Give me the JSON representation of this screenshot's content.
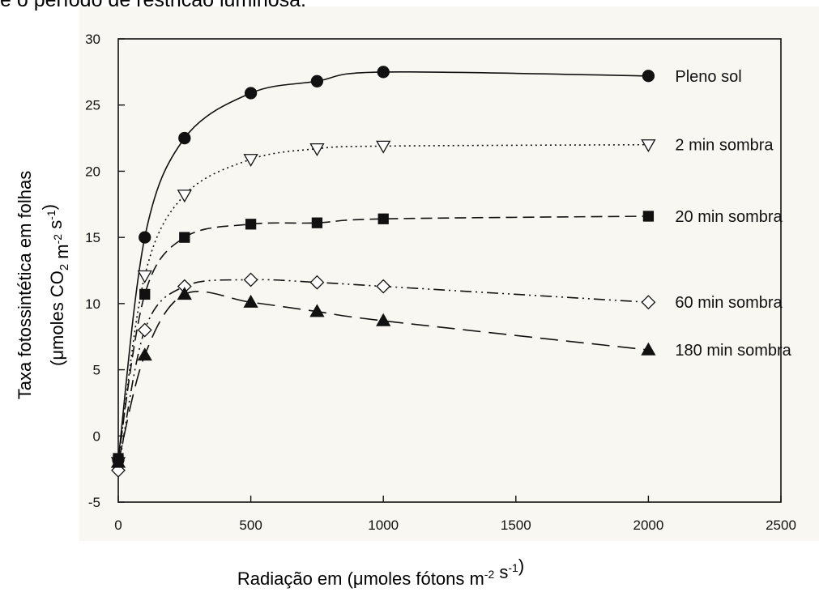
{
  "caption": "e o período de restrição luminosa.",
  "chart_data": {
    "type": "line",
    "xlabel": "Radiação em (µmoles fótons m-2 s-1)",
    "ylabel_line1": "Taxa fotossintética em folhas",
    "ylabel_line2": "(µmoles CO2 m-2 s-1)",
    "xlim": [
      0,
      2500
    ],
    "ylim": [
      -5,
      30
    ],
    "x_ticks": [
      0,
      500,
      1000,
      1500,
      2000,
      2500
    ],
    "y_ticks": [
      -5,
      0,
      5,
      10,
      15,
      20,
      25,
      30
    ],
    "grid": false,
    "series": [
      {
        "name": "Pleno sol",
        "marker": "circle-filled",
        "line_style": "solid",
        "points": [
          [
            0,
            -1.8
          ],
          [
            100,
            15.0
          ],
          [
            250,
            22.5
          ],
          [
            500,
            25.9
          ],
          [
            750,
            26.8
          ],
          [
            1000,
            27.5
          ],
          [
            2000,
            27.2
          ]
        ]
      },
      {
        "name": "2 min sombra",
        "marker": "triangle-down-open",
        "line_style": "dotted",
        "points": [
          [
            0,
            -2.0
          ],
          [
            100,
            12.1
          ],
          [
            250,
            18.2
          ],
          [
            500,
            20.9
          ],
          [
            750,
            21.7
          ],
          [
            1000,
            21.9
          ],
          [
            2000,
            22.0
          ]
        ]
      },
      {
        "name": "20 min sombra",
        "marker": "square-filled",
        "line_style": "dashed",
        "points": [
          [
            0,
            -1.7
          ],
          [
            100,
            10.7
          ],
          [
            250,
            15.0
          ],
          [
            500,
            16.0
          ],
          [
            750,
            16.1
          ],
          [
            1000,
            16.4
          ],
          [
            2000,
            16.6
          ]
        ]
      },
      {
        "name": "60 min sombra",
        "marker": "diamond-open",
        "line_style": "dash-dot-dot",
        "points": [
          [
            0,
            -2.6
          ],
          [
            100,
            8.0
          ],
          [
            250,
            11.3
          ],
          [
            500,
            11.8
          ],
          [
            750,
            11.6
          ],
          [
            1000,
            11.3
          ],
          [
            2000,
            10.1
          ]
        ]
      },
      {
        "name": "180 min sombra",
        "marker": "triangle-up-filled",
        "line_style": "long-dash",
        "points": [
          [
            0,
            -2.0
          ],
          [
            100,
            6.1
          ],
          [
            250,
            10.7
          ],
          [
            500,
            10.1
          ],
          [
            750,
            9.4
          ],
          [
            1000,
            8.7
          ],
          [
            2000,
            6.5
          ]
        ]
      }
    ]
  }
}
